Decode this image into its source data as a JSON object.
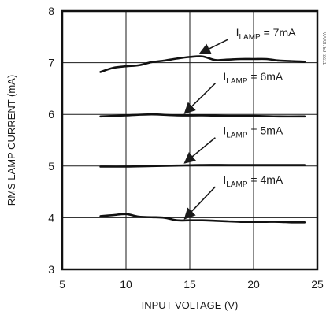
{
  "chart_data": {
    "type": "line",
    "xlabel": "INPUT VOLTAGE (V)",
    "ylabel": "RMS LAMP CURRENT (mA)",
    "xlim": [
      5,
      25
    ],
    "ylim": [
      3,
      8
    ],
    "x_ticks": [
      5,
      10,
      15,
      20,
      25
    ],
    "y_ticks": [
      3,
      4,
      5,
      6,
      7,
      8
    ],
    "grid": true,
    "series": [
      {
        "label_prefix": "I",
        "label_sub": "LAMP",
        "label_suffix": " = 7mA",
        "x": [
          8,
          9,
          10,
          11,
          12,
          13,
          14,
          15,
          16,
          17,
          18,
          19,
          20,
          21,
          22,
          23,
          24
        ],
        "y": [
          6.82,
          6.9,
          6.93,
          6.95,
          7.01,
          7.04,
          7.08,
          7.11,
          7.12,
          7.05,
          7.06,
          7.07,
          7.07,
          7.07,
          7.04,
          7.03,
          7.02
        ]
      },
      {
        "label_prefix": "I",
        "label_sub": "LAMP",
        "label_suffix": " = 6mA",
        "x": [
          8,
          10,
          12,
          14,
          16,
          18,
          20,
          22,
          24
        ],
        "y": [
          5.96,
          5.98,
          6.0,
          5.98,
          5.98,
          5.97,
          5.97,
          5.96,
          5.96
        ]
      },
      {
        "label_prefix": "I",
        "label_sub": "LAMP",
        "label_suffix": " = 5mA",
        "x": [
          8,
          10,
          12,
          14,
          16,
          18,
          20,
          22,
          24
        ],
        "y": [
          4.99,
          4.99,
          5.0,
          5.01,
          5.02,
          5.02,
          5.02,
          5.02,
          5.02
        ]
      },
      {
        "label_prefix": "I",
        "label_sub": "LAMP",
        "label_suffix": " = 4mA",
        "x": [
          8,
          9,
          10,
          11,
          12,
          13,
          14,
          15,
          16,
          17,
          18,
          19,
          20,
          21,
          22,
          23,
          24
        ],
        "y": [
          4.03,
          4.05,
          4.07,
          4.02,
          4.01,
          4.0,
          3.95,
          3.95,
          3.95,
          3.94,
          3.93,
          3.92,
          3.92,
          3.92,
          3.92,
          3.91,
          3.91
        ]
      }
    ],
    "annotations": [
      {
        "series": 0,
        "arrow_from": [
          18,
          7.45
        ],
        "arrow_to": [
          15.8,
          7.18
        ]
      },
      {
        "series": 1,
        "arrow_from": [
          17.0,
          6.6
        ],
        "arrow_to": [
          14.6,
          6.02
        ]
      },
      {
        "series": 2,
        "arrow_from": [
          17.0,
          5.55
        ],
        "arrow_to": [
          14.6,
          5.06
        ]
      },
      {
        "series": 3,
        "arrow_from": [
          17.0,
          4.6
        ],
        "arrow_to": [
          14.6,
          3.98
        ]
      }
    ],
    "watermark": "MAX8759 toc11"
  }
}
